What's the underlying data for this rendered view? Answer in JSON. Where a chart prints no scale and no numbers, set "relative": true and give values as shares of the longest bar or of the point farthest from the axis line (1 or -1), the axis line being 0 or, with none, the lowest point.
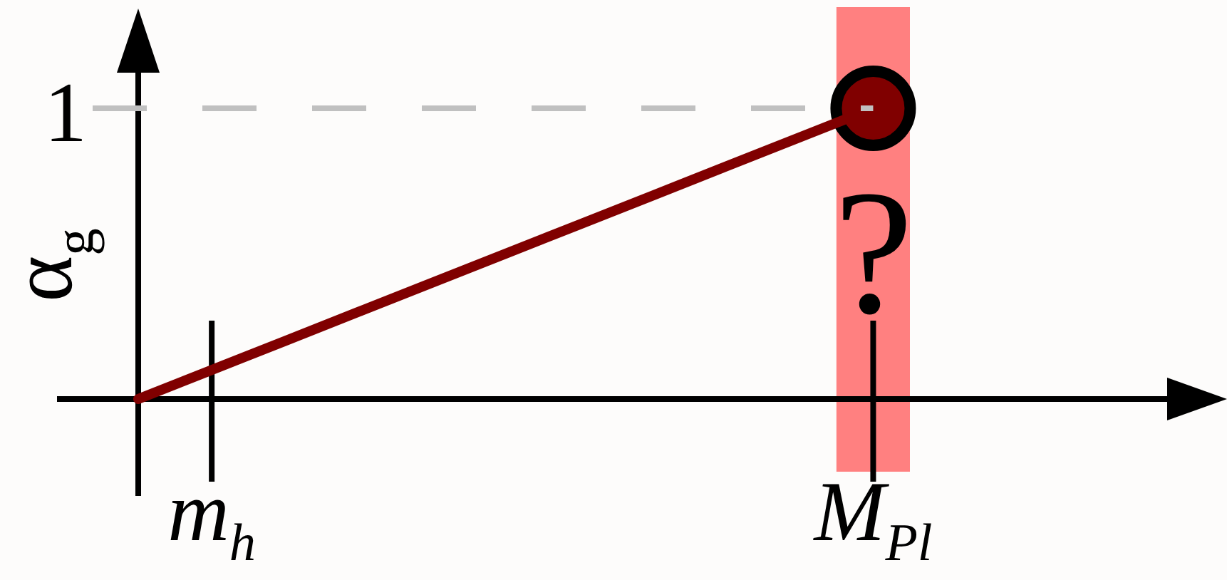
{
  "chart_data": {
    "type": "line",
    "relative": true,
    "ylabel": "α$_{g}$",
    "categories": [
      null,
      "m$_{h}$",
      null,
      null,
      null,
      null,
      null,
      null,
      null,
      null,
      "M$_{Pl}$",
      null,
      null,
      null,
      null
    ],
    "series": [
      {
        "type": "line",
        "color": "#800000",
        "values": [
          0,
          0.1,
          0.2,
          0.3,
          0.4,
          0.5,
          0.6,
          0.7,
          0.8,
          0.9,
          1,
          null,
          null,
          null,
          null
        ],
        "marker": "none"
      },
      {
        "type": "scatter",
        "color": "#800000",
        "values": [
          null,
          null,
          null,
          null,
          null,
          null,
          null,
          null,
          null,
          null,
          1,
          null,
          null,
          null,
          null
        ],
        "marker": "circle"
      }
    ],
    "ref_lines": [
      {
        "axis": "y",
        "value": 1,
        "label": "1",
        "color": "#c0c0c0",
        "line_style": "dashed"
      }
    ],
    "bands": [
      {
        "axis": "x",
        "from": "M$_{Pl}$",
        "to": "M$_{Pl}$",
        "label": "?",
        "color": "#ff8080"
      }
    ]
  }
}
